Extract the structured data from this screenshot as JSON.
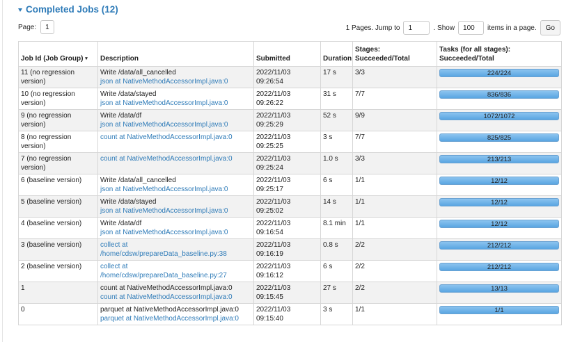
{
  "section": {
    "title": "Completed Jobs (12)"
  },
  "pager": {
    "page_label": "Page:",
    "current_page": "1",
    "pages_text": "1 Pages. Jump to",
    "jump_value": "1",
    "show_label": ". Show",
    "show_value": "100",
    "items_label": "items in a page.",
    "go_label": "Go"
  },
  "table": {
    "headers": {
      "job_id": "Job Id (Job Group)",
      "description": "Description",
      "submitted": "Submitted",
      "duration": "Duration",
      "stages_1": "Stages:",
      "stages_2": "Succeeded/Total",
      "tasks_1": "Tasks (for all stages):",
      "tasks_2": "Succeeded/Total"
    },
    "rows": [
      {
        "job": "11 (no regression version)",
        "desc_text": "Write /data/all_cancelled",
        "desc_link": "json at NativeMethodAccessorImpl.java:0",
        "submitted": "2022/11/03 09:26:54",
        "duration": "17 s",
        "stages": "3/3",
        "tasks": "224/224",
        "tasks_done_fraction": 1.0
      },
      {
        "job": "10 (no regression version)",
        "desc_text": "Write /data/stayed",
        "desc_link": "json at NativeMethodAccessorImpl.java:0",
        "submitted": "2022/11/03 09:26:22",
        "duration": "31 s",
        "stages": "7/7",
        "tasks": "836/836",
        "tasks_done_fraction": 1.0
      },
      {
        "job": "9 (no regression version)",
        "desc_text": "Write /data/df",
        "desc_link": "json at NativeMethodAccessorImpl.java:0",
        "submitted": "2022/11/03 09:25:29",
        "duration": "52 s",
        "stages": "9/9",
        "tasks": "1072/1072",
        "tasks_done_fraction": 1.0
      },
      {
        "job": "8 (no regression version)",
        "desc_text": "",
        "desc_link": "count at NativeMethodAccessorImpl.java:0",
        "submitted": "2022/11/03 09:25:25",
        "duration": "3 s",
        "stages": "7/7",
        "tasks": "825/825",
        "tasks_done_fraction": 1.0
      },
      {
        "job": "7 (no regression version)",
        "desc_text": "",
        "desc_link": "count at NativeMethodAccessorImpl.java:0",
        "submitted": "2022/11/03 09:25:24",
        "duration": "1.0 s",
        "stages": "3/3",
        "tasks": "213/213",
        "tasks_done_fraction": 1.0
      },
      {
        "job": "6 (baseline version)",
        "desc_text": "Write /data/all_cancelled",
        "desc_link": "json at NativeMethodAccessorImpl.java:0",
        "submitted": "2022/11/03 09:25:17",
        "duration": "6 s",
        "stages": "1/1",
        "tasks": "12/12",
        "tasks_done_fraction": 1.0
      },
      {
        "job": "5 (baseline version)",
        "desc_text": "Write /data/stayed",
        "desc_link": "json at NativeMethodAccessorImpl.java:0",
        "submitted": "2022/11/03 09:25:02",
        "duration": "14 s",
        "stages": "1/1",
        "tasks": "12/12",
        "tasks_done_fraction": 1.0
      },
      {
        "job": "4 (baseline version)",
        "desc_text": "Write /data/df",
        "desc_link": "json at NativeMethodAccessorImpl.java:0",
        "submitted": "2022/11/03 09:16:54",
        "duration": "8.1 min",
        "stages": "1/1",
        "tasks": "12/12",
        "tasks_done_fraction": 1.0
      },
      {
        "job": "3 (baseline version)",
        "desc_text": "",
        "desc_link": "collect at /home/cdsw/prepareData_baseline.py:38",
        "submitted": "2022/11/03 09:16:19",
        "duration": "0.8 s",
        "stages": "2/2",
        "tasks": "212/212",
        "tasks_done_fraction": 1.0
      },
      {
        "job": "2 (baseline version)",
        "desc_text": "",
        "desc_link": "collect at /home/cdsw/prepareData_baseline.py:27",
        "submitted": "2022/11/03 09:16:12",
        "duration": "6 s",
        "stages": "2/2",
        "tasks": "212/212",
        "tasks_done_fraction": 1.0
      },
      {
        "job": "1",
        "desc_text": "count at NativeMethodAccessorImpl.java:0",
        "desc_link": "count at NativeMethodAccessorImpl.java:0",
        "submitted": "2022/11/03 09:15:45",
        "duration": "27 s",
        "stages": "2/2",
        "tasks": "13/13",
        "tasks_done_fraction": 1.0
      },
      {
        "job": "0",
        "desc_text": "parquet at NativeMethodAccessorImpl.java:0",
        "desc_link": "parquet at NativeMethodAccessorImpl.java:0",
        "submitted": "2022/11/03 09:15:40",
        "duration": "3 s",
        "stages": "1/1",
        "tasks": "1/1",
        "tasks_done_fraction": 1.0
      }
    ]
  },
  "colors": {
    "link": "#2e7bb8",
    "bar_fill": "#5aa5e2",
    "row_alt": "#f2f2f2"
  },
  "icons": {
    "section_toggle": "caret-down-icon",
    "sort": "sort-down-icon"
  }
}
